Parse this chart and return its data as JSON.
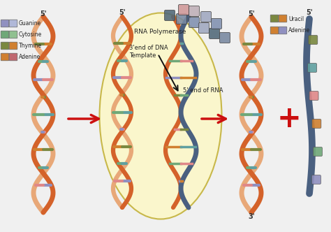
{
  "bg_color": "#f0f0f0",
  "ellipse_color": "#faf6cc",
  "ellipse_edge": "#c8b84a",
  "strand_orange": "#d4622a",
  "strand_peach": "#e8a878",
  "strand_blue": "#4a6080",
  "base_purple": "#9090c0",
  "base_green": "#70a878",
  "base_olive": "#7a8840",
  "base_orange": "#d08030",
  "base_pink": "#e08888",
  "base_teal": "#60a0a0",
  "arrow_red": "#cc1010",
  "plus_red": "#cc1010",
  "text_dark": "#222222",
  "label_rna_poly": "RNA Polymerase",
  "label_3end": "3'end of DNA\nTemplate",
  "label_5end_rna": "5' end of RNA",
  "nuc_colors": [
    "#506878",
    "#7888a0",
    "#8090b0",
    "#a0a8c0",
    "#c0b0b8",
    "#d09898",
    "#b88888",
    "#e8b0a0"
  ],
  "fig_w": 4.74,
  "fig_h": 3.32,
  "dpi": 100
}
